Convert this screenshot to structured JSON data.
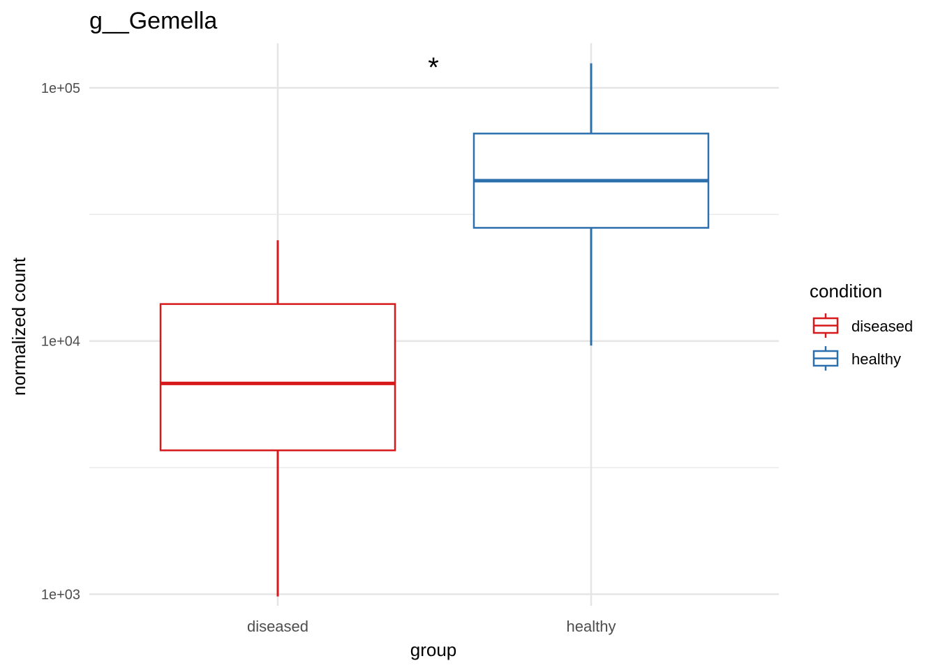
{
  "chart_data": {
    "type": "box",
    "title": "g__Gemella",
    "xlabel": "group",
    "ylabel": "normalized count",
    "y_scale": "log10",
    "ylim": [
      900,
      150000
    ],
    "y_ticks": [
      {
        "value": 1000,
        "label": "1e+03"
      },
      {
        "value": 10000,
        "label": "1e+04"
      },
      {
        "value": 100000,
        "label": "1e+05"
      }
    ],
    "y_minor_ticks": [
      3162,
      31623
    ],
    "categories": [
      "diseased",
      "healthy"
    ],
    "series": [
      {
        "name": "diseased",
        "color": "#d7191c",
        "whisker_low": 980,
        "q1": 3700,
        "median": 6800,
        "q3": 14000,
        "whisker_high": 25000
      },
      {
        "name": "healthy",
        "color": "#2c6fad",
        "whisker_low": 9600,
        "q1": 28000,
        "median": 43000,
        "q3": 66000,
        "whisker_high": 125000
      }
    ],
    "annotation": "*",
    "legend_title": "condition",
    "legend_position": "right",
    "grid": true
  }
}
